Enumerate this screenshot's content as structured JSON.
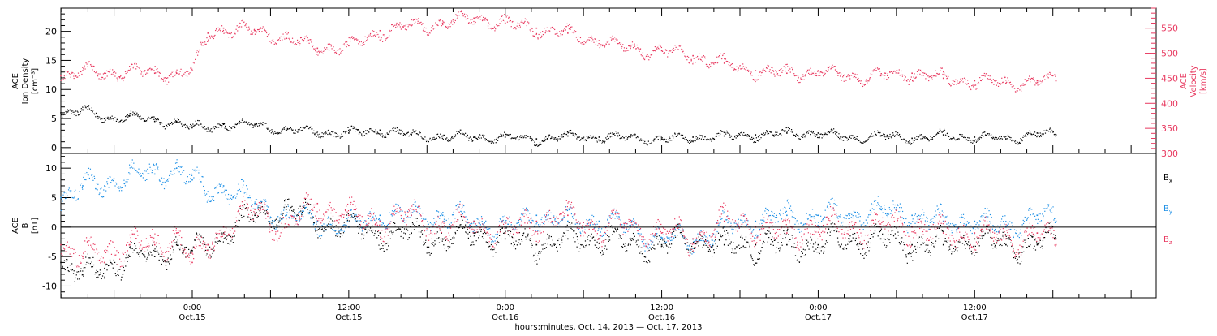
{
  "chart_data": [
    {
      "type": "scatter",
      "panel": "top",
      "ylabel_left": [
        "ACE",
        "Ion Density",
        "[cm⁻³]"
      ],
      "ylabel_right": [
        "ACE",
        "Velocity",
        "[km/s]"
      ],
      "ylim_left": [
        -1,
        24
      ],
      "ylim_right": [
        300,
        590
      ],
      "yticks_left": [
        0,
        5,
        10,
        15,
        20
      ],
      "yticks_right": [
        300,
        350,
        400,
        450,
        500,
        550
      ],
      "grid": false,
      "series": [
        {
          "axis": "left",
          "color": "#000000",
          "x": [
            -0.42,
            -0.35,
            -0.28,
            -0.2,
            -0.12,
            -0.05,
            0.0,
            0.05,
            0.1,
            0.2,
            0.3,
            0.4,
            0.5,
            0.6,
            0.7,
            0.8,
            0.9,
            1.0,
            1.1,
            1.2,
            1.3,
            1.4,
            1.5,
            1.6,
            1.7,
            1.8,
            1.9,
            2.0,
            2.1,
            2.2,
            2.3,
            2.4,
            2.5,
            2.6,
            2.7,
            2.76
          ],
          "y": [
            6.0,
            6.5,
            5.0,
            5.5,
            4.5,
            4.5,
            3.5,
            3.5,
            4.0,
            4.0,
            3.0,
            2.8,
            2.5,
            3.0,
            2.2,
            2.0,
            1.8,
            1.8,
            1.5,
            2.0,
            1.8,
            1.8,
            1.5,
            1.8,
            2.0,
            2.2,
            2.5,
            2.5,
            1.8,
            2.0,
            1.6,
            2.2,
            1.8,
            1.5,
            2.5,
            2.2
          ]
        },
        {
          "axis": "right",
          "color": "#e8385f",
          "x": [
            -0.42,
            -0.35,
            -0.28,
            -0.2,
            -0.12,
            -0.05,
            0.0,
            0.05,
            0.1,
            0.2,
            0.3,
            0.4,
            0.5,
            0.6,
            0.7,
            0.8,
            0.9,
            1.0,
            1.1,
            1.2,
            1.3,
            1.4,
            1.5,
            1.6,
            1.7,
            1.8,
            1.9,
            2.0,
            2.1,
            2.2,
            2.3,
            2.4,
            2.5,
            2.6,
            2.7,
            2.76
          ],
          "y": [
            455,
            465,
            460,
            465,
            460,
            460,
            465,
            540,
            550,
            545,
            530,
            510,
            515,
            545,
            555,
            560,
            570,
            560,
            550,
            540,
            525,
            510,
            505,
            495,
            480,
            465,
            460,
            465,
            455,
            455,
            460,
            450,
            445,
            440,
            445,
            445
          ]
        }
      ]
    },
    {
      "type": "scatter",
      "panel": "bottom",
      "ylabel_left": [
        "ACE",
        "B",
        "[nT]"
      ],
      "ylim": [
        -12,
        12.5
      ],
      "yticks": [
        -10,
        -5,
        0,
        5,
        10
      ],
      "zero_line": true,
      "grid": false,
      "legend_placement": "right",
      "series": [
        {
          "name": "B",
          "sub": "x",
          "color": "#000000",
          "x": [
            -0.42,
            -0.35,
            -0.28,
            -0.2,
            -0.12,
            -0.05,
            0.0,
            0.05,
            0.1,
            0.2,
            0.3,
            0.4,
            0.5,
            0.6,
            0.7,
            0.8,
            0.9,
            1.0,
            1.1,
            1.2,
            1.3,
            1.4,
            1.5,
            1.6,
            1.7,
            1.8,
            1.9,
            2.0,
            2.1,
            2.2,
            2.3,
            2.4,
            2.5,
            2.6,
            2.7,
            2.76
          ],
          "y": [
            -6,
            -8,
            -7,
            -5,
            -5,
            -3,
            -4,
            -3,
            -1,
            2,
            3,
            1,
            0,
            -1,
            -1,
            -2,
            -1,
            -2,
            -3,
            -2,
            -2,
            -3,
            -3,
            -2,
            -3,
            -3,
            -3,
            -3,
            -2,
            -2,
            -3,
            -3,
            -2,
            -3,
            -3,
            -2
          ]
        },
        {
          "name": "B",
          "sub": "y",
          "color": "#1e90e6",
          "x": [
            -0.42,
            -0.35,
            -0.28,
            -0.2,
            -0.12,
            -0.05,
            0.0,
            0.05,
            0.1,
            0.2,
            0.3,
            0.4,
            0.5,
            0.6,
            0.7,
            0.8,
            0.9,
            1.0,
            1.1,
            1.2,
            1.3,
            1.4,
            1.5,
            1.6,
            1.7,
            1.8,
            1.9,
            2.0,
            2.1,
            2.2,
            2.3,
            2.4,
            2.5,
            2.6,
            2.7,
            2.76
          ],
          "y": [
            5,
            7,
            7,
            9,
            9,
            10,
            8,
            6,
            7,
            4,
            2,
            1,
            0,
            2,
            2,
            2,
            1,
            0,
            2,
            1,
            1,
            0,
            -2,
            -2,
            0,
            1,
            2,
            2,
            2,
            3,
            2,
            1,
            1,
            0,
            2,
            1
          ]
        },
        {
          "name": "B",
          "sub": "z",
          "color": "#e8385f",
          "x": [
            -0.42,
            -0.35,
            -0.28,
            -0.2,
            -0.12,
            -0.05,
            0.0,
            0.05,
            0.1,
            0.2,
            0.3,
            0.4,
            0.5,
            0.6,
            0.7,
            0.8,
            0.9,
            1.0,
            1.1,
            1.2,
            1.3,
            1.4,
            1.5,
            1.6,
            1.7,
            1.8,
            1.9,
            2.0,
            2.1,
            2.2,
            2.3,
            2.4,
            2.5,
            2.6,
            2.7,
            2.76
          ],
          "y": [
            -3,
            -5,
            -4,
            -3,
            -3,
            -1,
            -6,
            -3,
            0,
            3,
            0,
            4,
            2,
            1,
            2,
            0,
            1,
            -1,
            1,
            2,
            0,
            0,
            -1,
            -2,
            1,
            0,
            -1,
            0,
            0,
            0,
            0,
            -1,
            -1,
            -2,
            -1,
            -3
          ]
        }
      ]
    }
  ],
  "x_axis": {
    "range_days": [
      -0.42,
      3.08
    ],
    "xlabel": "hours:minutes, Oct. 14, 2013 — Oct. 17, 2013",
    "ticks": [
      {
        "t": 0.0,
        "time": "0:00",
        "date": "Oct.15"
      },
      {
        "t": 0.5,
        "time": "12:00",
        "date": "Oct.15"
      },
      {
        "t": 1.0,
        "time": "0:00",
        "date": "Oct.16"
      },
      {
        "t": 1.5,
        "time": "12:00",
        "date": "Oct.16"
      },
      {
        "t": 2.0,
        "time": "0:00",
        "date": "Oct.17"
      },
      {
        "t": 2.5,
        "time": "12:00",
        "date": "Oct.17"
      }
    ]
  },
  "colors": {
    "black": "#000000",
    "red": "#e8385f",
    "blue": "#1e90e6"
  }
}
